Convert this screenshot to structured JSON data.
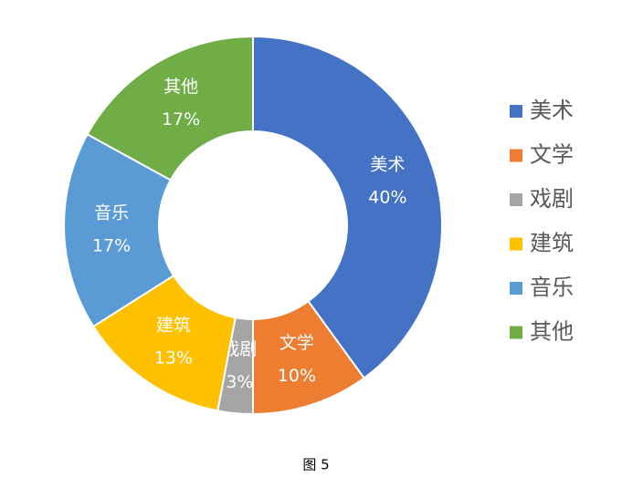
{
  "chart_data": {
    "type": "donut",
    "categories": [
      "美术",
      "文学",
      "戏剧",
      "建筑",
      "音乐",
      "其他"
    ],
    "values": [
      40,
      10,
      3,
      13,
      17,
      17
    ],
    "value_labels": [
      "40%",
      "10%",
      "3%",
      "13%",
      "17%",
      "17%"
    ],
    "colors": [
      "#4472c4",
      "#ed7d31",
      "#a5a5a5",
      "#ffc000",
      "#5b9bd5",
      "#70ad47"
    ],
    "legend": "right",
    "caption": "图 5"
  }
}
